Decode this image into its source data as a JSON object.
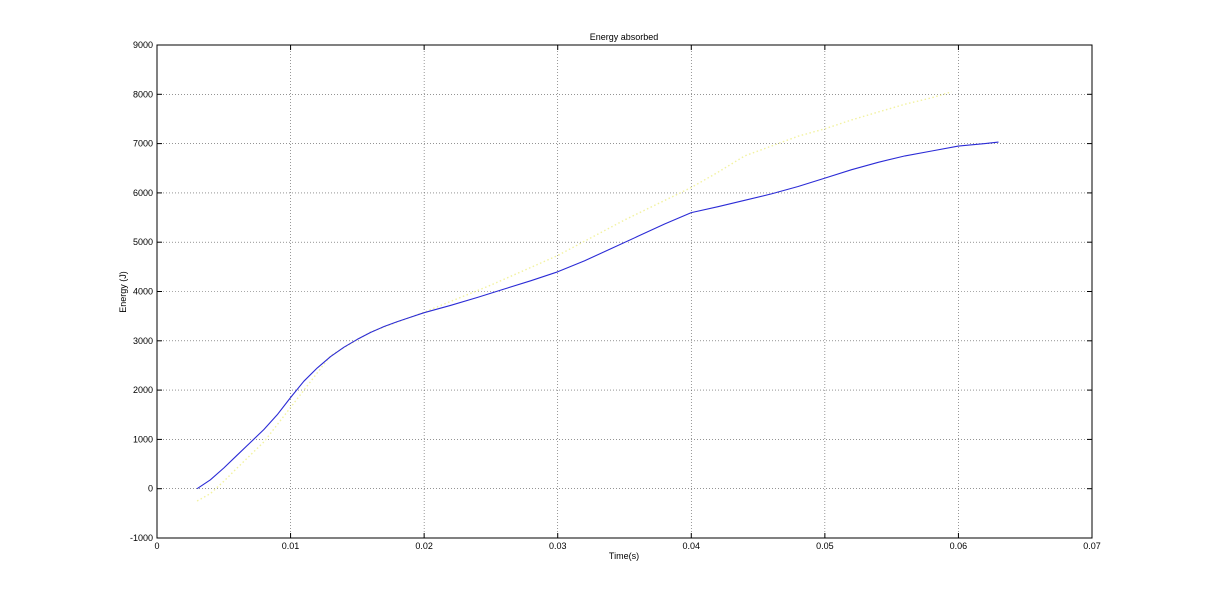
{
  "chart_data": {
    "type": "line",
    "title": "Energy absorbed",
    "xlabel": "Time(s)",
    "ylabel": "Energy (J)",
    "xlim": [
      0,
      0.07
    ],
    "ylim": [
      -1000,
      9000
    ],
    "xticks": [
      0,
      0.01,
      0.02,
      0.03,
      0.04,
      0.05,
      0.06,
      0.07
    ],
    "xtick_labels": [
      "0",
      "0.01",
      "0.02",
      "0.03",
      "0.04",
      "0.05",
      "0.06",
      "0.07"
    ],
    "yticks": [
      -1000,
      0,
      1000,
      2000,
      3000,
      4000,
      5000,
      6000,
      7000,
      8000,
      9000
    ],
    "ytick_labels": [
      "-1000",
      "0",
      "1000",
      "2000",
      "3000",
      "4000",
      "5000",
      "6000",
      "7000",
      "8000",
      "9000"
    ],
    "grid": true,
    "series": [
      {
        "color": "#2b2bd6",
        "style": "solid",
        "x": [
          0.003,
          0.004,
          0.005,
          0.006,
          0.007,
          0.008,
          0.009,
          0.01,
          0.011,
          0.012,
          0.013,
          0.014,
          0.015,
          0.016,
          0.017,
          0.018,
          0.019,
          0.02,
          0.022,
          0.024,
          0.026,
          0.028,
          0.03,
          0.032,
          0.034,
          0.036,
          0.038,
          0.04,
          0.042,
          0.044,
          0.046,
          0.048,
          0.05,
          0.052,
          0.054,
          0.056,
          0.058,
          0.06,
          0.062,
          0.063
        ],
        "y": [
          0,
          180,
          420,
          680,
          940,
          1200,
          1500,
          1850,
          2180,
          2450,
          2680,
          2870,
          3030,
          3170,
          3290,
          3390,
          3480,
          3570,
          3720,
          3880,
          4050,
          4220,
          4400,
          4620,
          4870,
          5120,
          5370,
          5600,
          5720,
          5850,
          5980,
          6130,
          6300,
          6470,
          6620,
          6750,
          6850,
          6950,
          7000,
          7030
        ]
      },
      {
        "color": "#f2f2a0",
        "style": "dotted",
        "x": [
          0.003,
          0.004,
          0.005,
          0.006,
          0.008,
          0.01,
          0.013,
          0.016,
          0.02,
          0.025,
          0.03,
          0.035,
          0.04,
          0.042,
          0.044,
          0.046,
          0.048,
          0.05,
          0.052,
          0.054,
          0.056,
          0.058,
          0.0595
        ],
        "y": [
          -250,
          -100,
          150,
          420,
          950,
          1650,
          2700,
          3180,
          3580,
          4130,
          4730,
          5450,
          6110,
          6420,
          6750,
          6950,
          7150,
          7300,
          7480,
          7640,
          7800,
          7930,
          8050
        ]
      }
    ]
  }
}
